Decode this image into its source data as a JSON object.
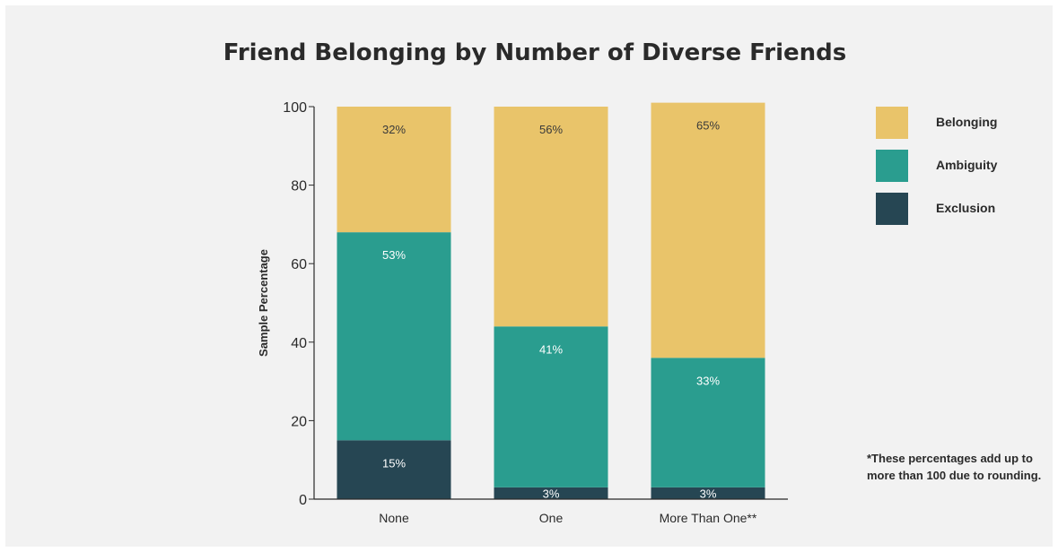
{
  "chart_data": {
    "type": "bar",
    "stacked": true,
    "title": "Friend Belonging by Number of Diverse Friends",
    "xlabel": "",
    "ylabel": "Sample Percentage",
    "ylim": [
      0,
      100
    ],
    "yticks": [
      0,
      20,
      40,
      60,
      80,
      100
    ],
    "categories": [
      "None",
      "One",
      "More Than One**"
    ],
    "series": [
      {
        "name": "Exclusion",
        "color": "#264653",
        "values": [
          15,
          3,
          3
        ],
        "labels": [
          "15%",
          "3%",
          "3%"
        ]
      },
      {
        "name": "Ambiguity",
        "color": "#2a9d8f",
        "values": [
          53,
          41,
          33
        ],
        "labels": [
          "53%",
          "41%",
          "33%"
        ]
      },
      {
        "name": "Belonging",
        "color": "#e9c46a",
        "values": [
          32,
          56,
          65
        ],
        "labels": [
          "32%",
          "56%",
          "65%"
        ]
      }
    ],
    "legend": {
      "position": "right",
      "order": [
        "Belonging",
        "Ambiguity",
        "Exclusion"
      ]
    },
    "grid": false
  },
  "legend_items": [
    {
      "label": "Belonging",
      "color": "#e9c46a"
    },
    {
      "label": "Ambiguity",
      "color": "#2a9d8f"
    },
    {
      "label": "Exclusion",
      "color": "#264653"
    }
  ],
  "footnote": "*These percentages add up to more than 100 due to rounding."
}
